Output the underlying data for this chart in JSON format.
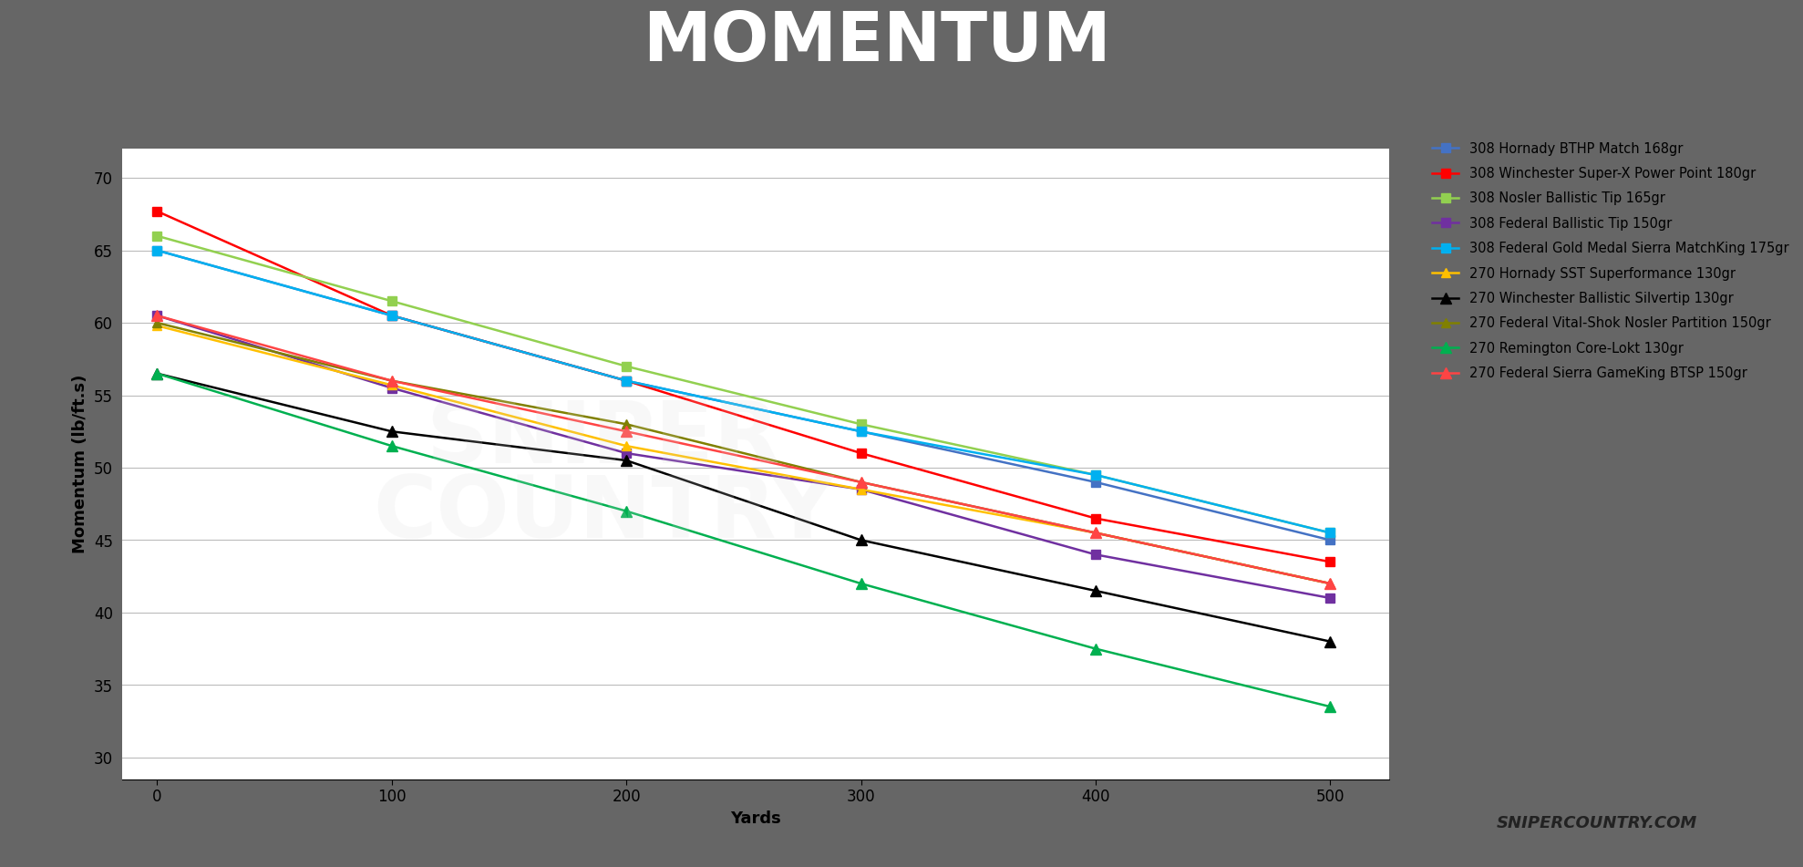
{
  "title": "MOMENTUM",
  "xlabel": "Yards",
  "ylabel": "Momentum (lb/ft.s)",
  "xlim": [
    -15,
    525
  ],
  "ylim": [
    28.5,
    72
  ],
  "yticks": [
    30,
    35,
    40,
    45,
    50,
    55,
    60,
    65,
    70
  ],
  "xticks": [
    0,
    100,
    200,
    300,
    400,
    500
  ],
  "x": [
    0,
    100,
    200,
    300,
    400,
    500
  ],
  "series": [
    {
      "label": "308 Hornady BTHP Match 168gr",
      "color": "#4472C4",
      "marker": "s",
      "markersize": 7,
      "values": [
        65.0,
        60.5,
        56.0,
        52.5,
        49.0,
        45.0
      ]
    },
    {
      "label": "308 Winchester Super-X Power Point 180gr",
      "color": "#FF0000",
      "marker": "s",
      "markersize": 7,
      "values": [
        67.7,
        60.5,
        56.0,
        51.0,
        46.5,
        43.5
      ]
    },
    {
      "label": "308 Nosler Ballistic Tip 165gr",
      "color": "#92D050",
      "marker": "s",
      "markersize": 7,
      "values": [
        66.0,
        61.5,
        57.0,
        53.0,
        49.5,
        45.5
      ]
    },
    {
      "label": "308 Federal Ballistic Tip 150gr",
      "color": "#7030A0",
      "marker": "s",
      "markersize": 7,
      "values": [
        60.5,
        55.5,
        51.0,
        48.5,
        44.0,
        41.0
      ]
    },
    {
      "label": "308 Federal Gold Medal Sierra MatchKing 175gr",
      "color": "#00B0F0",
      "marker": "s",
      "markersize": 7,
      "values": [
        65.0,
        60.5,
        56.0,
        52.5,
        49.5,
        45.5
      ]
    },
    {
      "label": "270 Hornady SST Superformance 130gr",
      "color": "#FFC000",
      "marker": "^",
      "markersize": 7,
      "values": [
        59.8,
        55.7,
        51.5,
        48.5,
        45.5,
        42.0
      ]
    },
    {
      "label": "270 Winchester Ballistic Silvertip 130gr",
      "color": "#000000",
      "marker": "^",
      "markersize": 8,
      "values": [
        56.5,
        52.5,
        50.5,
        45.0,
        41.5,
        38.0
      ]
    },
    {
      "label": "270 Federal Vital-Shok Nosler Partition 150gr",
      "color": "#808000",
      "marker": "^",
      "markersize": 7,
      "values": [
        60.0,
        56.0,
        53.0,
        49.0,
        45.5,
        42.0
      ]
    },
    {
      "label": "270 Remington Core-Lokt 130gr",
      "color": "#00B050",
      "marker": "^",
      "markersize": 8,
      "values": [
        56.5,
        51.5,
        47.0,
        42.0,
        37.5,
        33.5
      ]
    },
    {
      "label": "270 Federal Sierra GameKing BTSP 150gr",
      "color": "#FF4444",
      "marker": "^",
      "markersize": 8,
      "values": [
        60.5,
        56.0,
        52.5,
        49.0,
        45.5,
        42.0
      ]
    }
  ],
  "title_bg_color": "#666666",
  "title_font_color": "#FFFFFF",
  "stripe_color": "#E05555",
  "plot_bg_color": "#FFFFFF",
  "grid_color": "#BBBBBB",
  "title_fontsize": 54,
  "axis_label_fontsize": 13,
  "tick_fontsize": 12,
  "legend_fontsize": 10.5,
  "watermark_color": "#DDDDDD"
}
